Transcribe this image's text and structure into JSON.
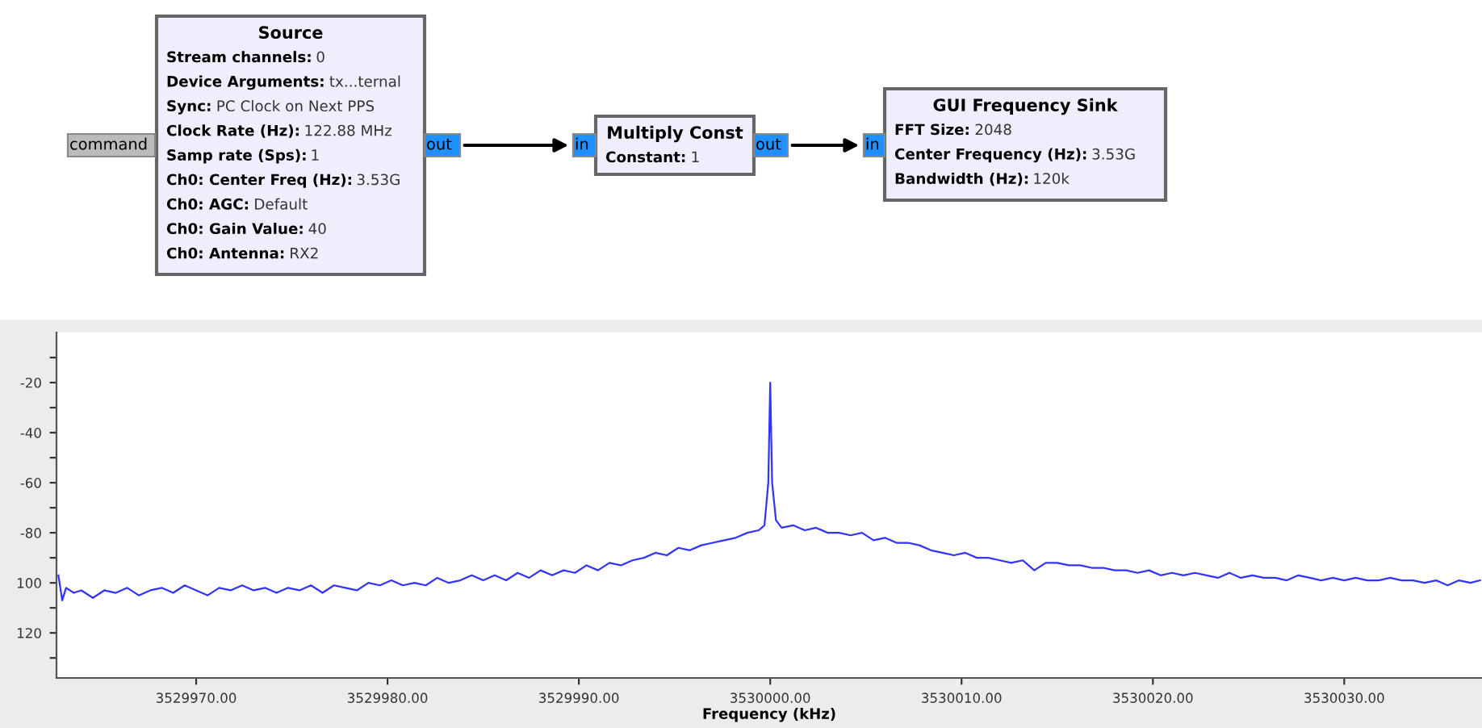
{
  "chart_data": {
    "type": "line",
    "xlabel": "Frequency (kHz)",
    "xlim": [
      3529962.7,
      3530037.2
    ],
    "xticks": [
      {
        "value": 3529970,
        "label": "3529970.00"
      },
      {
        "value": 3529980,
        "label": "3529980.00"
      },
      {
        "value": 3529990,
        "label": "3529990.00"
      },
      {
        "value": 3530000,
        "label": "3530000.00"
      },
      {
        "value": 3530010,
        "label": "3530010.00"
      },
      {
        "value": 3530020,
        "label": "3530020.00"
      },
      {
        "value": 3530030,
        "label": "3530030.00"
      }
    ],
    "ylim": [
      -138,
      0
    ],
    "yticks": [
      {
        "value": -10,
        "label": null
      },
      {
        "value": -20,
        "label": "-20"
      },
      {
        "value": -30,
        "label": null
      },
      {
        "value": -40,
        "label": "-40"
      },
      {
        "value": -50,
        "label": null
      },
      {
        "value": -60,
        "label": "-60"
      },
      {
        "value": -70,
        "label": null
      },
      {
        "value": -80,
        "label": "-80"
      },
      {
        "value": -90,
        "label": null
      },
      {
        "value": -100,
        "label": "100"
      },
      {
        "value": -110,
        "label": null
      },
      {
        "value": -120,
        "label": "120"
      },
      {
        "value": -130,
        "label": null
      }
    ],
    "grid": false,
    "legend": false,
    "marker": "none",
    "line_style": "solid",
    "series": [
      {
        "color": "#3333ff",
        "x": [
          3529962.8,
          3529963.0,
          3529963.2,
          3529963.6,
          3529964.0,
          3529964.6,
          3529965.2,
          3529965.8,
          3529966.4,
          3529967.0,
          3529967.6,
          3529968.2,
          3529968.8,
          3529969.4,
          3529970.0,
          3529970.6,
          3529971.2,
          3529971.8,
          3529972.4,
          3529973.0,
          3529973.6,
          3529974.2,
          3529974.8,
          3529975.4,
          3529976.0,
          3529976.6,
          3529977.2,
          3529977.8,
          3529978.4,
          3529979.0,
          3529979.6,
          3529980.2,
          3529980.8,
          3529981.4,
          3529982.0,
          3529982.6,
          3529983.2,
          3529983.8,
          3529984.4,
          3529985.0,
          3529985.6,
          3529986.2,
          3529986.8,
          3529987.4,
          3529988.0,
          3529988.6,
          3529989.2,
          3529989.8,
          3529990.4,
          3529991.0,
          3529991.6,
          3529992.2,
          3529992.8,
          3529993.4,
          3529994.0,
          3529994.6,
          3529995.2,
          3529995.8,
          3529996.4,
          3529997.0,
          3529997.6,
          3529998.2,
          3529998.8,
          3529999.4,
          3529999.7,
          3529999.9,
          3530000.0,
          3530000.1,
          3530000.3,
          3530000.6,
          3530001.2,
          3530001.8,
          3530002.4,
          3530003.0,
          3530003.6,
          3530004.2,
          3530004.8,
          3530005.4,
          3530006.0,
          3530006.6,
          3530007.2,
          3530007.8,
          3530008.4,
          3530009.0,
          3530009.6,
          3530010.2,
          3530010.8,
          3530011.4,
          3530012.0,
          3530012.6,
          3530013.2,
          3530013.8,
          3530014.4,
          3530015.0,
          3530015.6,
          3530016.2,
          3530016.8,
          3530017.4,
          3530018.0,
          3530018.6,
          3530019.2,
          3530019.8,
          3530020.4,
          3530021.0,
          3530021.6,
          3530022.2,
          3530022.8,
          3530023.4,
          3530024.0,
          3530024.6,
          3530025.2,
          3530025.8,
          3530026.4,
          3530027.0,
          3530027.6,
          3530028.2,
          3530028.8,
          3530029.4,
          3530030.0,
          3530030.6,
          3530031.2,
          3530031.8,
          3530032.4,
          3530033.0,
          3530033.6,
          3530034.2,
          3530034.8,
          3530035.4,
          3530036.0,
          3530036.6,
          3530037.1
        ],
        "values": [
          -97,
          -107,
          -102,
          -104,
          -103,
          -106,
          -103,
          -104,
          -102,
          -105,
          -103,
          -102,
          -104,
          -101,
          -103,
          -105,
          -102,
          -103,
          -101,
          -103,
          -102,
          -104,
          -102,
          -103,
          -101,
          -104,
          -101,
          -102,
          -103,
          -100,
          -101,
          -99,
          -101,
          -100,
          -101,
          -98,
          -100,
          -99,
          -97,
          -99,
          -97,
          -99,
          -96,
          -98,
          -95,
          -97,
          -95,
          -96,
          -93,
          -95,
          -92,
          -93,
          -91,
          -90,
          -88,
          -89,
          -86,
          -87,
          -85,
          -84,
          -83,
          -82,
          -80,
          -79,
          -77,
          -60,
          -20,
          -60,
          -75,
          -78,
          -77,
          -79,
          -78,
          -80,
          -80,
          -81,
          -80,
          -83,
          -82,
          -84,
          -84,
          -85,
          -87,
          -88,
          -89,
          -88,
          -90,
          -90,
          -91,
          -92,
          -91,
          -95,
          -92,
          -92,
          -93,
          -93,
          -94,
          -94,
          -95,
          -95,
          -96,
          -95,
          -97,
          -96,
          -97,
          -96,
          -97,
          -98,
          -96,
          -98,
          -97,
          -98,
          -98,
          -99,
          -97,
          -98,
          -99,
          -98,
          -99,
          -98,
          -99,
          -99,
          -98,
          -99,
          -99,
          -100,
          -99,
          -101,
          -99,
          -100,
          -99
        ]
      }
    ],
    "annotations": [
      "Source\nStream channels: 0\nDevice Arguments: tx...ternal\nSync: PC Clock on Next PPS\nClock Rate (Hz): 122.88 MHz\nSamp rate (Sps): 1\nCh0: Center Freq (Hz): 3.53G\nCh0: AGC: Default\nCh0: Gain Value: 40\nCh0: Antenna: RX2",
      "Multiply Const\nConstant: 1",
      "GUI Frequency Sink\nFFT Size: 2048\nCenter Frequency (Hz): 3.53G\nBandwidth (Hz): 120k",
      "command",
      "out",
      "in",
      "out",
      "in"
    ]
  }
}
